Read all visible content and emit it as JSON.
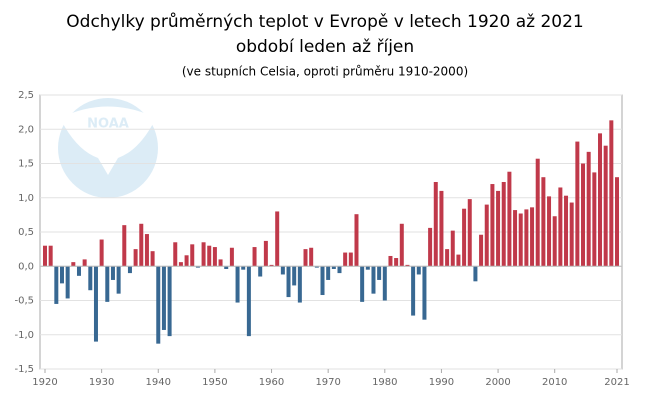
{
  "chart_data": {
    "type": "bar",
    "title": "Odchylky průměrných teplot v Evropě v letech 1920 až 2021",
    "subtitle_line": "období leden až říjen",
    "subtitle": "(ve stupních Celsia, oproti průměru 1910-2000)",
    "logo": "NOAA",
    "x": [
      1920,
      1921,
      1922,
      1923,
      1924,
      1925,
      1926,
      1927,
      1928,
      1929,
      1930,
      1931,
      1932,
      1933,
      1934,
      1935,
      1936,
      1937,
      1938,
      1939,
      1940,
      1941,
      1942,
      1943,
      1944,
      1945,
      1946,
      1947,
      1948,
      1949,
      1950,
      1951,
      1952,
      1953,
      1954,
      1955,
      1956,
      1957,
      1958,
      1959,
      1960,
      1961,
      1962,
      1963,
      1964,
      1965,
      1966,
      1967,
      1968,
      1969,
      1970,
      1971,
      1972,
      1973,
      1974,
      1975,
      1976,
      1977,
      1978,
      1979,
      1980,
      1981,
      1982,
      1983,
      1984,
      1985,
      1986,
      1987,
      1988,
      1989,
      1990,
      1991,
      1992,
      1993,
      1994,
      1995,
      1996,
      1997,
      1998,
      1999,
      2000,
      2001,
      2002,
      2003,
      2004,
      2005,
      2006,
      2007,
      2008,
      2009,
      2010,
      2011,
      2012,
      2013,
      2014,
      2015,
      2016,
      2017,
      2018,
      2019,
      2020,
      2021
    ],
    "values": [
      0.3,
      0.3,
      -0.55,
      -0.25,
      -0.47,
      0.06,
      -0.14,
      0.1,
      -0.35,
      -1.1,
      0.39,
      -0.52,
      -0.2,
      -0.4,
      0.6,
      -0.1,
      0.25,
      0.62,
      0.47,
      0.22,
      -1.13,
      -0.93,
      -1.02,
      0.35,
      0.06,
      0.16,
      0.32,
      -0.02,
      0.35,
      0.3,
      0.28,
      0.1,
      -0.04,
      0.27,
      -0.53,
      -0.05,
      -1.02,
      0.28,
      -0.15,
      0.37,
      0.02,
      0.8,
      -0.12,
      -0.45,
      -0.28,
      -0.53,
      0.25,
      0.27,
      -0.02,
      -0.42,
      -0.2,
      -0.04,
      -0.1,
      0.2,
      0.2,
      0.76,
      -0.52,
      -0.05,
      -0.4,
      -0.2,
      -0.5,
      0.15,
      0.12,
      0.62,
      0.02,
      -0.72,
      -0.12,
      -0.78,
      0.56,
      1.23,
      1.1,
      0.25,
      0.52,
      0.17,
      0.84,
      0.98,
      -0.22,
      0.46,
      0.9,
      1.2,
      1.1,
      1.23,
      1.38,
      0.82,
      0.77,
      0.83,
      0.86,
      1.57,
      1.3,
      1.02,
      0.73,
      1.15,
      1.03,
      0.93,
      1.82,
      1.5,
      1.67,
      1.37,
      1.94,
      1.76,
      2.13,
      1.3
    ],
    "positive_color": "#c0394a",
    "negative_color": "#386892",
    "xlim": [
      1920,
      2021
    ],
    "xticks": [
      1920,
      1930,
      1940,
      1950,
      1960,
      1970,
      1980,
      1990,
      2000,
      2010,
      2021
    ],
    "ylim": [
      -1.5,
      2.5
    ],
    "yticks": [
      {
        "value": -1.5,
        "label": "-1,5"
      },
      {
        "value": -1.0,
        "label": "-1,0"
      },
      {
        "value": -0.5,
        "label": "-0,5"
      },
      {
        "value": 0,
        "label": "0,0"
      },
      {
        "value": 0.5,
        "label": "0,5"
      },
      {
        "value": 1.0,
        "label": "1,0"
      },
      {
        "value": 1.5,
        "label": "1,5"
      },
      {
        "value": 2.0,
        "label": "2,0"
      },
      {
        "value": 2.5,
        "label": "2,5"
      }
    ],
    "grid": true
  }
}
